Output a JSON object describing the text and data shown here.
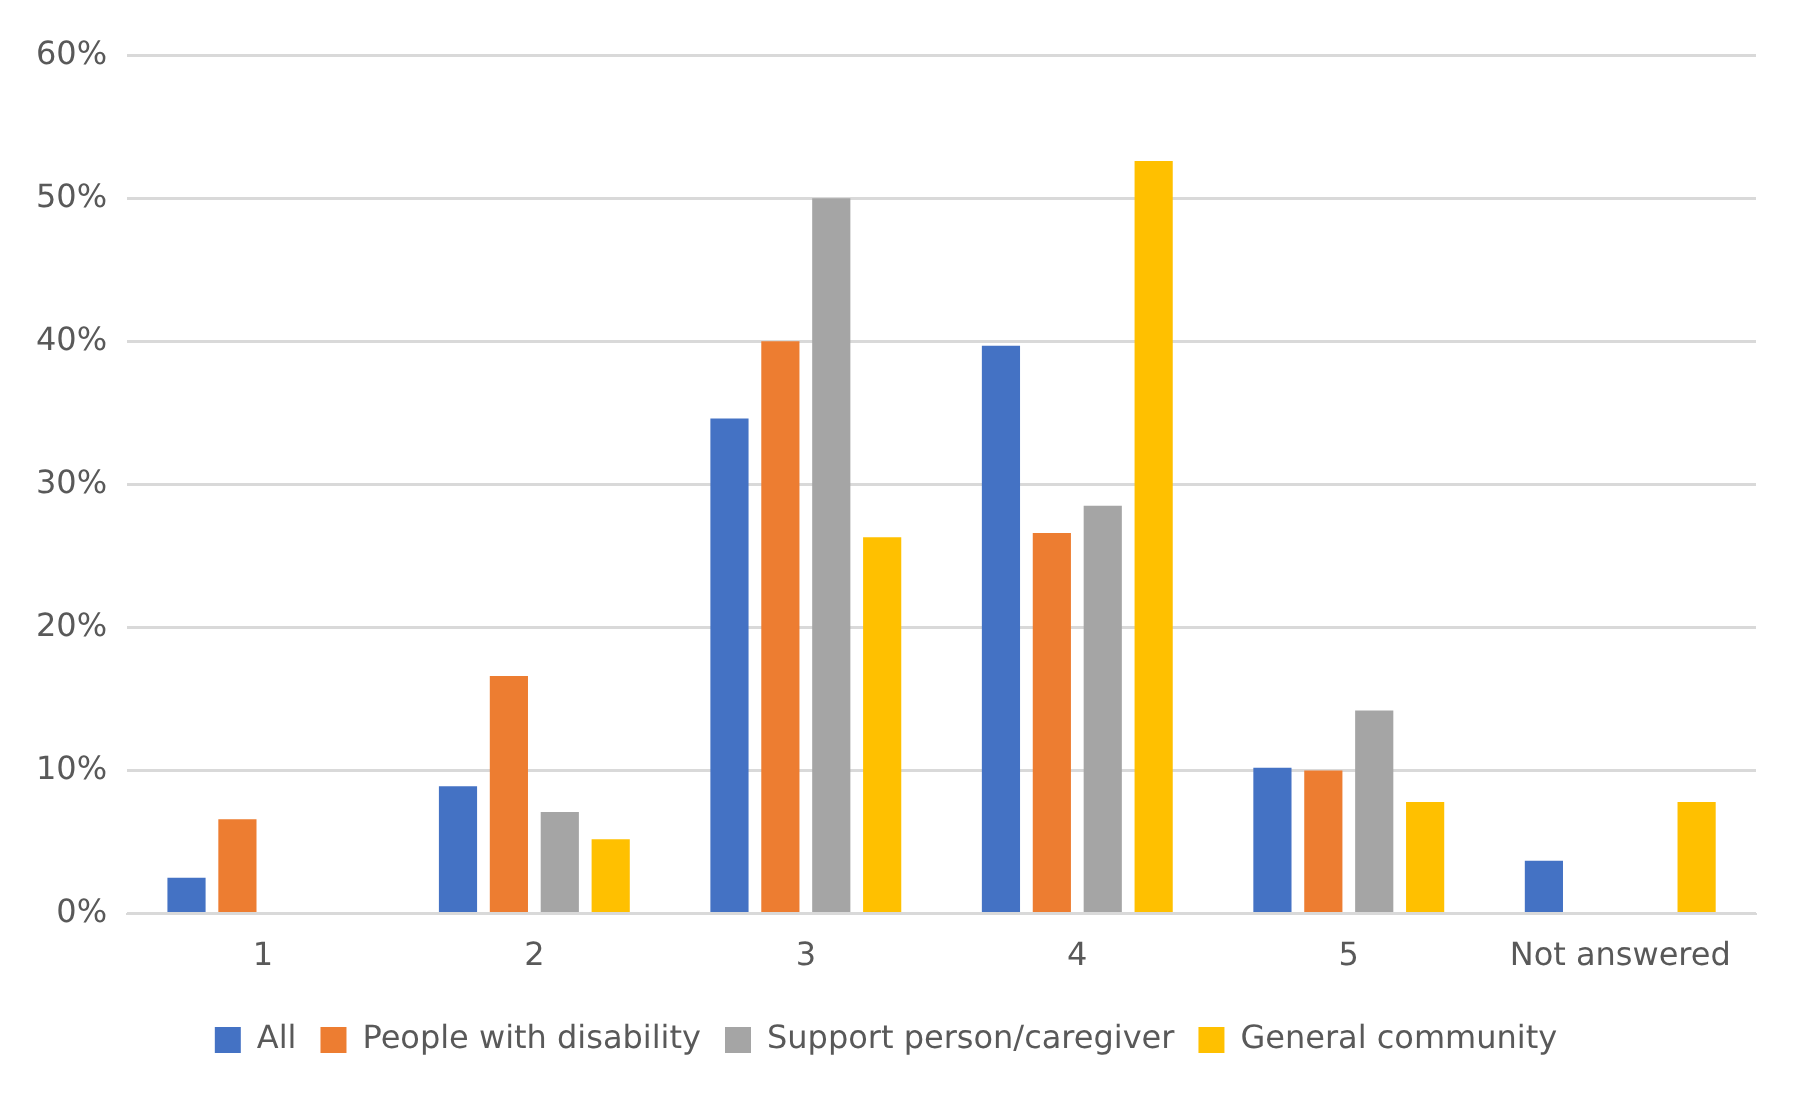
{
  "chart_data": {
    "type": "bar",
    "categories": [
      "1",
      "2",
      "3",
      "4",
      "5",
      "Not answered"
    ],
    "series": [
      {
        "name": "All",
        "color": "#4472c4",
        "values": [
          2.5,
          8.9,
          34.6,
          39.7,
          10.2,
          3.7
        ]
      },
      {
        "name": "People with disability",
        "color": "#ed7d31",
        "values": [
          6.6,
          16.6,
          40,
          26.6,
          10,
          0
        ]
      },
      {
        "name": "Support person/caregiver",
        "color": "#a5a5a5",
        "values": [
          0,
          7.1,
          50,
          28.5,
          14.2,
          0
        ]
      },
      {
        "name": "General community",
        "color": "#ffc000",
        "values": [
          0,
          5.2,
          26.3,
          52.6,
          7.8,
          7.8
        ]
      }
    ],
    "ylim": [
      0,
      60
    ],
    "yticks": [
      {
        "value": 0,
        "label": "0%"
      },
      {
        "value": 10,
        "label": "10%"
      },
      {
        "value": 20,
        "label": "20%"
      },
      {
        "value": 30,
        "label": "30%"
      },
      {
        "value": 40,
        "label": "40%"
      },
      {
        "value": 50,
        "label": "50%"
      },
      {
        "value": 60,
        "label": "60%"
      }
    ],
    "grid": "y",
    "legend": "bottom"
  }
}
